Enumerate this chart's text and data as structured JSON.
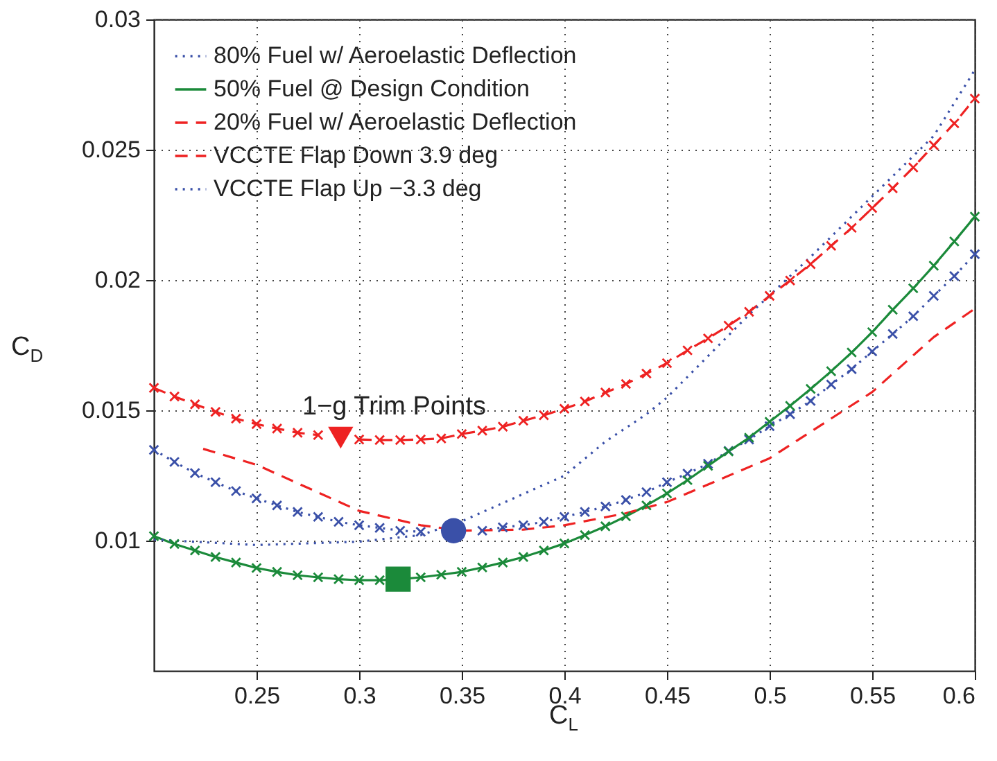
{
  "chart_data": {
    "type": "line",
    "xlabel": "C$_{L}$",
    "ylabel": "C$_{D}$",
    "annotations": [
      "1−g Trim Points"
    ],
    "x": [
      0.2,
      0.21,
      0.22,
      0.23,
      0.24,
      0.25,
      0.26,
      0.27,
      0.28,
      0.29,
      0.3,
      0.31,
      0.32,
      0.33,
      0.34,
      0.35,
      0.36,
      0.37,
      0.38,
      0.39,
      0.4,
      0.41,
      0.42,
      0.43,
      0.44,
      0.45,
      0.46,
      0.47,
      0.48,
      0.49,
      0.5,
      0.51,
      0.52,
      0.53,
      0.54,
      0.55,
      0.56,
      0.57,
      0.58,
      0.59,
      0.6
    ],
    "series": [
      {
        "name": "80% Fuel w/ Aeroelastic Deflection",
        "color": "#3a50a8",
        "marker": "cross",
        "line_style": "dotted",
        "values": [
          0.01348,
          0.01302,
          0.01259,
          0.01224,
          0.0119,
          0.01162,
          0.01135,
          0.0111,
          0.01091,
          0.01072,
          0.01059,
          0.01049,
          0.01038,
          0.01034,
          null,
          null,
          0.01038,
          0.01051,
          0.01059,
          0.01072,
          0.01091,
          0.0111,
          0.01131,
          0.01156,
          0.01186,
          0.01224,
          0.01257,
          0.01295,
          0.01344,
          0.01388,
          0.01439,
          0.01485,
          0.01536,
          0.01599,
          0.01658,
          0.01726,
          0.01793,
          0.01861,
          0.01939,
          0.02015,
          0.02099
        ]
      },
      {
        "name": "50% Fuel @ Design Condition",
        "color": "#1b8a3a",
        "marker": "cross",
        "line_style": "solid",
        "values": [
          0.01017,
          0.00987,
          0.00962,
          0.00937,
          0.00916,
          0.00895,
          0.0088,
          0.00867,
          0.00859,
          0.00852,
          0.00848,
          0.00848,
          0.00852,
          0.00859,
          0.00869,
          0.0088,
          0.00897,
          0.00916,
          0.00937,
          0.00962,
          0.00989,
          0.01021,
          0.01055,
          0.01093,
          0.01135,
          0.01181,
          0.01232,
          0.01287,
          0.01342,
          0.01395,
          0.01456,
          0.01517,
          0.01582,
          0.0165,
          0.01722,
          0.018,
          0.01886,
          0.01968,
          0.02055,
          0.02148,
          0.02243
        ]
      },
      {
        "name": "20% Fuel w/ Aeroelastic Deflection",
        "color": "#ee2222",
        "marker": "cross",
        "line_style": "dashed",
        "values": [
          0.01586,
          0.01553,
          0.01523,
          0.01494,
          0.01468,
          0.01447,
          0.0143,
          0.01414,
          0.01405,
          null,
          0.01388,
          0.01386,
          0.01386,
          0.01388,
          0.01392,
          0.01409,
          0.01422,
          0.01437,
          0.0146,
          0.01481,
          0.01506,
          0.01534,
          0.01568,
          0.01601,
          0.01641,
          0.01681,
          0.0173,
          0.01776,
          0.01825,
          0.01878,
          0.01939,
          0.01998,
          0.02061,
          0.02131,
          0.022,
          0.02276,
          0.02352,
          0.02432,
          0.02517,
          0.02601,
          0.02696
        ]
      },
      {
        "name": "VCCTE Flap Down 3.9 deg",
        "color": "#ee2222",
        "marker": "none",
        "line_style": "dashed",
        "x": [
          0.224,
          0.25,
          0.3,
          0.33,
          0.35,
          0.38,
          0.4,
          0.43,
          0.45,
          0.5,
          0.55,
          0.58,
          0.6
        ],
        "values": [
          0.01352,
          0.01291,
          0.01114,
          0.01059,
          0.01038,
          0.01042,
          0.01059,
          0.01105,
          0.01148,
          0.01316,
          0.0157,
          0.01781,
          0.0189
        ]
      },
      {
        "name": "VCCTE Flap Up −3.3 deg",
        "color": "#3a50a8",
        "marker": "none",
        "line_style": "dotted",
        "x": [
          0.2,
          0.25,
          0.3,
          0.33,
          0.35,
          0.4,
          0.42,
          0.44,
          0.45,
          0.49,
          0.52,
          0.55,
          0.58,
          0.6
        ],
        "values": [
          0.01004,
          0.00983,
          0.00996,
          0.01021,
          0.01074,
          0.01249,
          0.0138,
          0.01485,
          0.01549,
          0.01867,
          0.02089,
          0.02321,
          0.02553,
          0.02806
        ]
      },
      {
        "type": "scatter",
        "color": "#ee2222",
        "marker": "triangle",
        "x": [
          0.291
        ],
        "values": [
          0.01395
        ]
      },
      {
        "type": "scatter",
        "color": "#1b8a3a",
        "marker": "square",
        "x": [
          0.319
        ],
        "values": [
          0.00852
        ]
      },
      {
        "type": "scatter",
        "color": "#3a50a8",
        "marker": "circle",
        "x": [
          0.346
        ],
        "values": [
          0.01038
        ]
      }
    ],
    "xlim": [
      0.2,
      0.6
    ],
    "ylim": [
      0.005,
      0.03
    ],
    "xticks": [
      0.25,
      0.3,
      0.35,
      0.4,
      0.45,
      0.5,
      0.55,
      0.6
    ],
    "yticks": [
      0.01,
      0.015,
      0.02,
      0.025,
      0.03
    ],
    "grid": true,
    "legend": "top left"
  }
}
